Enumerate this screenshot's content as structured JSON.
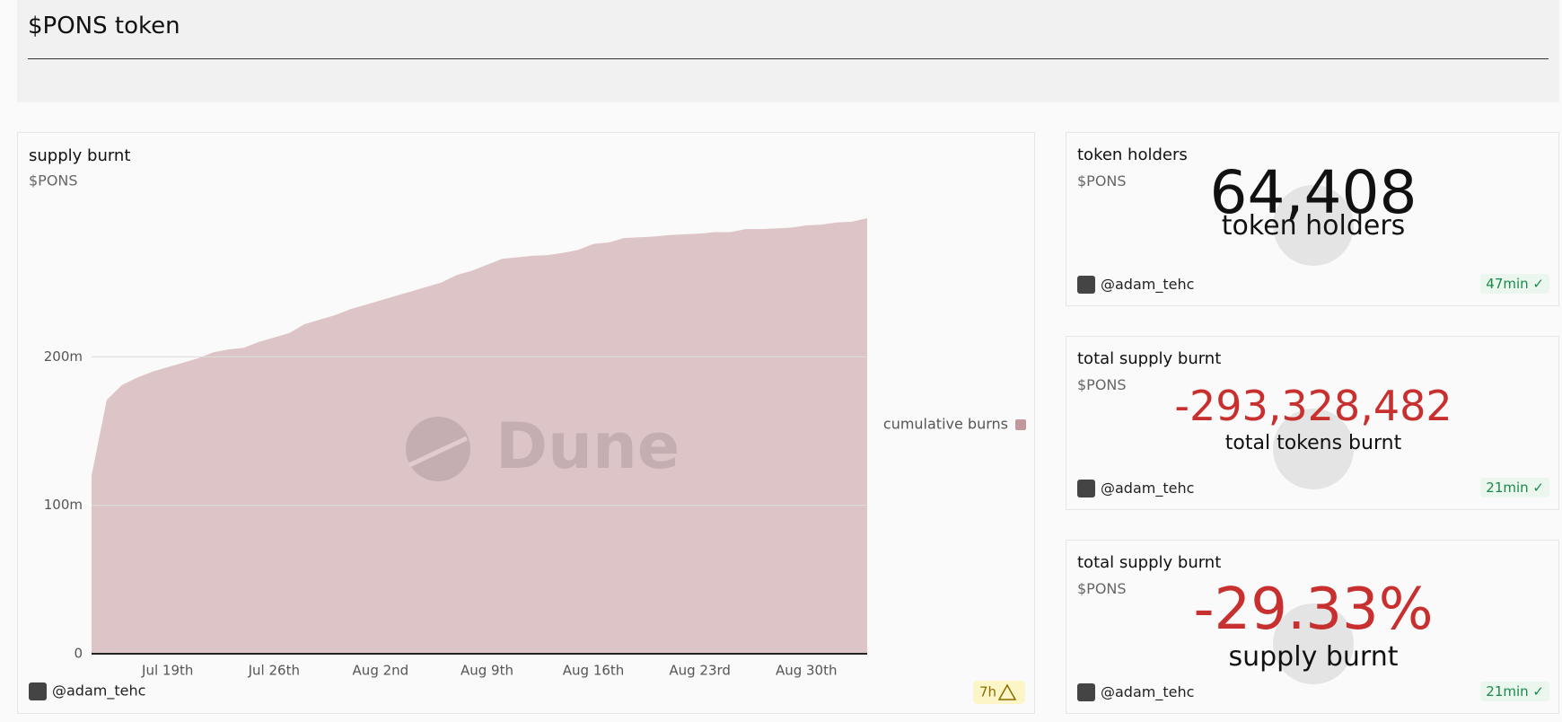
{
  "header": {
    "title": "$PONS token"
  },
  "chart_data": {
    "type": "area",
    "title": "supply burnt",
    "subtitle": "$PONS",
    "watermark": "Dune",
    "author": "@adam_tehc",
    "age": "7h",
    "x": [
      "Jul 14th",
      "Jul 15th",
      "Jul 16th",
      "Jul 17th",
      "Jul 18th",
      "Jul 19th",
      "Jul 20th",
      "Jul 21st",
      "Jul 22nd",
      "Jul 23rd",
      "Jul 24th",
      "Jul 25th",
      "Jul 26th",
      "Jul 27th",
      "Jul 28th",
      "Jul 29th",
      "Jul 30th",
      "Jul 31st",
      "Aug 1st",
      "Aug 2nd",
      "Aug 3rd",
      "Aug 4th",
      "Aug 5th",
      "Aug 6th",
      "Aug 7th",
      "Aug 8th",
      "Aug 9th",
      "Aug 10th",
      "Aug 11th",
      "Aug 12th",
      "Aug 13th",
      "Aug 14th",
      "Aug 15th",
      "Aug 16th",
      "Aug 17th",
      "Aug 18th",
      "Aug 19th",
      "Aug 20th",
      "Aug 21st",
      "Aug 22nd",
      "Aug 23rd",
      "Aug 24th",
      "Aug 25th",
      "Aug 26th",
      "Aug 27th",
      "Aug 28th",
      "Aug 29th",
      "Aug 30th",
      "Aug 31st",
      "Sep 1st",
      "Sep 2nd",
      "Sep 3rd"
    ],
    "series": [
      {
        "name": "cumulative burns",
        "color": "#c4979c",
        "values": [
          120000000,
          171000000,
          181000000,
          186000000,
          190000000,
          193000000,
          196000000,
          199000000,
          203000000,
          205000000,
          206000000,
          210000000,
          213000000,
          216000000,
          222000000,
          225000000,
          228000000,
          232000000,
          235000000,
          238000000,
          241000000,
          244000000,
          247000000,
          250000000,
          255000000,
          258000000,
          262000000,
          266000000,
          267000000,
          268000000,
          268500000,
          270000000,
          272000000,
          276000000,
          277000000,
          280000000,
          280500000,
          281000000,
          282000000,
          282500000,
          283000000,
          284000000,
          284000000,
          286000000,
          286000000,
          286500000,
          287000000,
          288500000,
          289000000,
          290500000,
          291000000,
          293328482
        ]
      }
    ],
    "ylim": [
      0,
      300000000
    ],
    "yticks": [
      {
        "value": 0,
        "label": "0"
      },
      {
        "value": 100000000,
        "label": "100m"
      },
      {
        "value": 200000000,
        "label": "200m"
      }
    ],
    "xticks": [
      "Jul 19th",
      "Jul 26th",
      "Aug 2nd",
      "Aug 9th",
      "Aug 16th",
      "Aug 23rd",
      "Aug 30th"
    ],
    "grid": true,
    "legend": "right"
  },
  "counters": [
    {
      "title": "token holders",
      "subtitle": "$PONS",
      "value": "64,408",
      "label": "token holders",
      "author": "@adam_tehc",
      "age": "47min"
    },
    {
      "title": "total supply burnt",
      "subtitle": "$PONS",
      "value": "-293,328,482",
      "label": "total tokens burnt",
      "author": "@adam_tehc",
      "age": "21min"
    },
    {
      "title": "total supply burnt",
      "subtitle": "$PONS",
      "value": "-29.33%",
      "label": "supply burnt",
      "author": "@adam_tehc",
      "age": "21min"
    }
  ]
}
